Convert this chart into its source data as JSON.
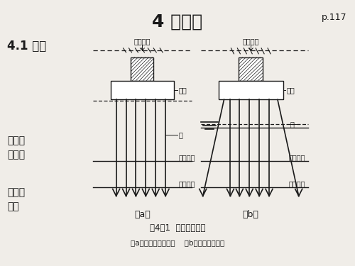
{
  "title": "4 桩基础",
  "page": "p.117",
  "section": "4.1 概述",
  "left_labels": [
    "高承台",
    "低承台",
    "竖直桩",
    "斜桩"
  ],
  "fig_caption": "图4－1  桩基础示意图",
  "fig_subcaption": "（a）低承台桩基础；    （b）高承台桩基础",
  "label_a": "（a）",
  "label_b": "（b）",
  "bg_color": "#f0ede8",
  "line_color": "#1a1a1a",
  "text_color": "#1a1a1a"
}
